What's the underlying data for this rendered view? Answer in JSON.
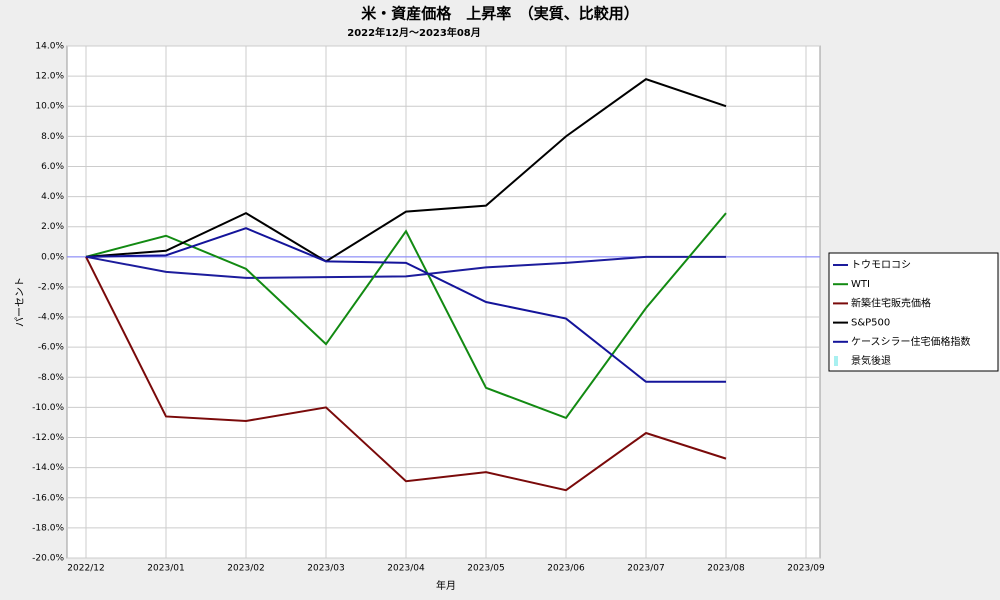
{
  "chart_data": {
    "type": "line",
    "title": "米・資産価格　上昇率　（実質、比較用）",
    "subtitle": "2022年12月～2023年08月",
    "x_label": "年月",
    "y_label": "パーセント",
    "categories": [
      "2022/12",
      "2023/01",
      "2023/02",
      "2023/03",
      "2023/04",
      "2023/05",
      "2023/06",
      "2023/07",
      "2023/08",
      "2023/09"
    ],
    "series": [
      {
        "name": "トウモロコシ",
        "color": "#1c1c9c",
        "values": [
          0,
          -1.0,
          -1.4,
          -1.35,
          -1.3,
          -0.7,
          -0.4,
          0.0,
          0.0,
          null
        ]
      },
      {
        "name": "WTI",
        "color": "#128a12",
        "values": [
          0,
          1.4,
          -0.8,
          -5.8,
          1.7,
          -8.7,
          -10.7,
          -3.4,
          2.9,
          null
        ]
      },
      {
        "name": "新築住宅販売価格",
        "color": "#7a0a0a",
        "values": [
          0,
          -10.6,
          -10.9,
          -10.0,
          -14.9,
          -14.3,
          -15.5,
          -11.7,
          -13.4,
          null
        ]
      },
      {
        "name": "S&P500",
        "color": "#000000",
        "values": [
          0,
          0.4,
          2.9,
          -0.3,
          3.0,
          3.4,
          8.0,
          11.8,
          10.0,
          null
        ]
      },
      {
        "name": "ケースシラー住宅価格指数",
        "color": "#14149a",
        "values": [
          0,
          0.1,
          1.9,
          -0.3,
          -0.4,
          -3.0,
          -4.1,
          -8.3,
          -8.3,
          null
        ]
      },
      {
        "name": "景気後退",
        "color": "#a8f0f0",
        "style": "band",
        "values": [
          null,
          null,
          null,
          null,
          null,
          null,
          null,
          null,
          null,
          null
        ]
      }
    ],
    "ylim": [
      -20,
      14
    ],
    "yticks": [
      {
        "value": -20,
        "label": "-20.0%"
      },
      {
        "value": -18,
        "label": "-18.0%"
      },
      {
        "value": -16,
        "label": "-16.0%"
      },
      {
        "value": -14,
        "label": "-14.0%"
      },
      {
        "value": -12,
        "label": "-12.0%"
      },
      {
        "value": -10,
        "label": "-10.0%"
      },
      {
        "value": -8,
        "label": "-8.0%"
      },
      {
        "value": -6,
        "label": "-6.0%"
      },
      {
        "value": -4,
        "label": "-4.0%"
      },
      {
        "value": -2,
        "label": "-2.0%"
      },
      {
        "value": 0,
        "label": "0.0%"
      },
      {
        "value": 2,
        "label": "2.0%"
      },
      {
        "value": 4,
        "label": "4.0%"
      },
      {
        "value": 6,
        "label": "6.0%"
      },
      {
        "value": 8,
        "label": "8.0%"
      },
      {
        "value": 10,
        "label": "10.0%"
      },
      {
        "value": 12,
        "label": "12.0%"
      },
      {
        "value": 14,
        "label": "14.0%"
      }
    ],
    "grid": true,
    "legend": "right"
  }
}
